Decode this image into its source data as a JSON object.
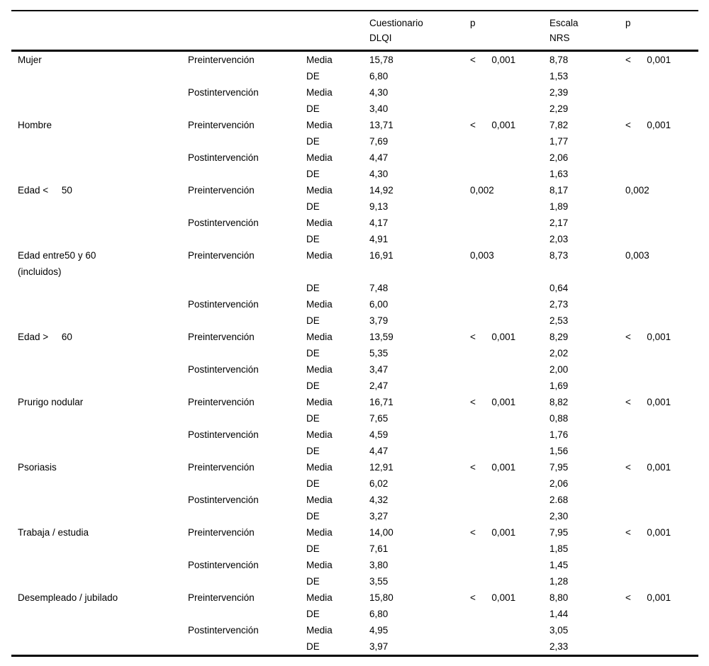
{
  "table": {
    "header": {
      "dlqi_line1": "Cuestionario",
      "dlqi_line2": "DLQI",
      "p1": "p",
      "nrs_line1": "Escala",
      "nrs_line2": "NRS",
      "p2": "p"
    },
    "phase_labels": {
      "pre": "Preintervención",
      "post": "Postintervención"
    },
    "stat_labels": {
      "media": "Media",
      "de": "DE"
    },
    "groups": [
      {
        "label": "Mujer",
        "label2": "",
        "dlqi": {
          "pre_media": "15,78",
          "pre_de": "6,80",
          "post_media": "4,30",
          "post_de": "3,40"
        },
        "p_dlqi": "<      0,001",
        "nrs": {
          "pre_media": "8,78",
          "pre_de": "1,53",
          "post_media": "2,39",
          "post_de": "2,29"
        },
        "p_nrs": "<      0,001"
      },
      {
        "label": "Hombre",
        "label2": "",
        "dlqi": {
          "pre_media": "13,71",
          "pre_de": "7,69",
          "post_media": "4,47",
          "post_de": "4,30"
        },
        "p_dlqi": "<      0,001",
        "nrs": {
          "pre_media": "7,82",
          "pre_de": "1,77",
          "post_media": "2,06",
          "post_de": "1,63"
        },
        "p_nrs": "<      0,001"
      },
      {
        "label": "Edad <     50",
        "label2": "",
        "dlqi": {
          "pre_media": "14,92",
          "pre_de": "9,13",
          "post_media": "4,17",
          "post_de": "4,91"
        },
        "p_dlqi": "0,002",
        "nrs": {
          "pre_media": "8,17",
          "pre_de": "1,89",
          "post_media": "2,17",
          "post_de": "2,03"
        },
        "p_nrs": "0,002"
      },
      {
        "label": "Edad entre50 y 60",
        "label2": "(incluidos)",
        "dlqi": {
          "pre_media": "16,91",
          "pre_de": "7,48",
          "post_media": "6,00",
          "post_de": "3,79"
        },
        "p_dlqi": "0,003",
        "nrs": {
          "pre_media": "8,73",
          "pre_de": "0,64",
          "post_media": "2,73",
          "post_de": "2,53"
        },
        "p_nrs": "0,003"
      },
      {
        "label": "Edad >     60",
        "label2": "",
        "dlqi": {
          "pre_media": "13,59",
          "pre_de": "5,35",
          "post_media": "3,47",
          "post_de": "2,47"
        },
        "p_dlqi": "<      0,001",
        "nrs": {
          "pre_media": "8,29",
          "pre_de": "2,02",
          "post_media": "2,00",
          "post_de": "1,69"
        },
        "p_nrs": "<      0,001"
      },
      {
        "label": "Prurigo nodular",
        "label2": "",
        "dlqi": {
          "pre_media": "16,71",
          "pre_de": "7,65",
          "post_media": "4,59",
          "post_de": "4,47"
        },
        "p_dlqi": "<      0,001",
        "nrs": {
          "pre_media": "8,82",
          "pre_de": "0,88",
          "post_media": "1,76",
          "post_de": "1,56"
        },
        "p_nrs": "<      0,001"
      },
      {
        "label": "Psoriasis",
        "label2": "",
        "dlqi": {
          "pre_media": "12,91",
          "pre_de": "6,02",
          "post_media": "4,32",
          "post_de": "3,27"
        },
        "p_dlqi": "<      0,001",
        "nrs": {
          "pre_media": "7,95",
          "pre_de": "2,06",
          "post_media": "2.68",
          "post_de": "2,30"
        },
        "p_nrs": "<      0,001"
      },
      {
        "label": "Trabaja / estudia",
        "label2": "",
        "dlqi": {
          "pre_media": "14,00",
          "pre_de": "7,61",
          "post_media": "3,80",
          "post_de": "3,55"
        },
        "p_dlqi": "<      0,001",
        "nrs": {
          "pre_media": "7,95",
          "pre_de": "1,85",
          "post_media": "1,45",
          "post_de": "1,28"
        },
        "p_nrs": "<      0,001"
      },
      {
        "label": "Desempleado / jubilado",
        "label2": "",
        "dlqi": {
          "pre_media": "15,80",
          "pre_de": "6,80",
          "post_media": "4,95",
          "post_de": "3,97"
        },
        "p_dlqi": "<      0,001",
        "nrs": {
          "pre_media": "8,80",
          "pre_de": "1,44",
          "post_media": "3,05",
          "post_de": "2,33"
        },
        "p_nrs": "<      0,001"
      }
    ]
  }
}
